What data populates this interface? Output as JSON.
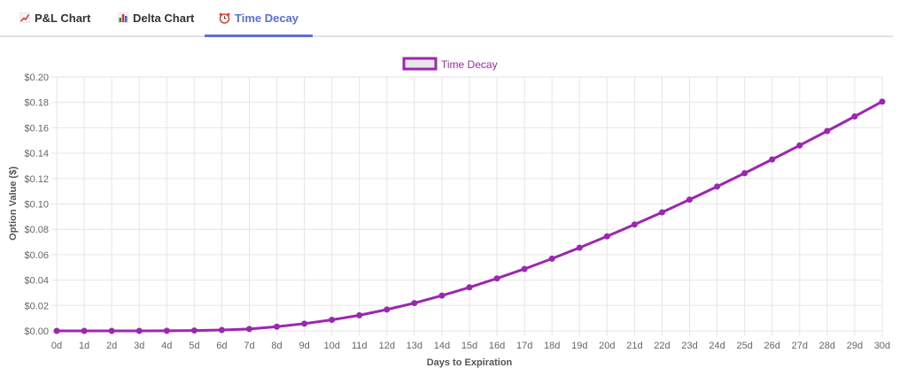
{
  "tabs": [
    {
      "label": "P&L Chart",
      "icon": "chart-increasing-icon",
      "active": false
    },
    {
      "label": "Delta Chart",
      "icon": "bar-chart-icon",
      "active": false
    },
    {
      "label": "Time Decay",
      "icon": "alarm-clock-icon",
      "active": true
    }
  ],
  "colors": {
    "accent": "#5b6fd9",
    "series": "#9c27b0",
    "legend_fill": "#e8e8e8",
    "grid": "#e6e6e6",
    "tick_text": "#666666"
  },
  "chart_data": {
    "type": "line",
    "title": "",
    "legend": [
      "Time Decay"
    ],
    "legend_position": "top",
    "xlabel": "Days to Expiration",
    "ylabel": "Option Value ($)",
    "ylim": [
      0,
      0.2
    ],
    "y_ticks": [
      "$0.00",
      "$0.02",
      "$0.04",
      "$0.06",
      "$0.08",
      "$0.10",
      "$0.12",
      "$0.14",
      "$0.16",
      "$0.18",
      "$0.20"
    ],
    "grid": true,
    "categories": [
      "0d",
      "1d",
      "2d",
      "3d",
      "4d",
      "5d",
      "6d",
      "7d",
      "8d",
      "9d",
      "10d",
      "11d",
      "12d",
      "13d",
      "14d",
      "15d",
      "16d",
      "17d",
      "18d",
      "19d",
      "20d",
      "21d",
      "22d",
      "23d",
      "24d",
      "25d",
      "26d",
      "27d",
      "28d",
      "29d",
      "30d"
    ],
    "series": [
      {
        "name": "Time Decay",
        "values": [
          0.0,
          0.0,
          0.0,
          0.0,
          0.0001,
          0.0003,
          0.0007,
          0.0015,
          0.0033,
          0.0057,
          0.0087,
          0.0123,
          0.0168,
          0.0219,
          0.0278,
          0.0343,
          0.0413,
          0.0488,
          0.0569,
          0.0655,
          0.0745,
          0.0838,
          0.0934,
          0.1034,
          0.1137,
          0.1242,
          0.135,
          0.1461,
          0.1574,
          0.1689,
          0.1806
        ]
      }
    ]
  }
}
